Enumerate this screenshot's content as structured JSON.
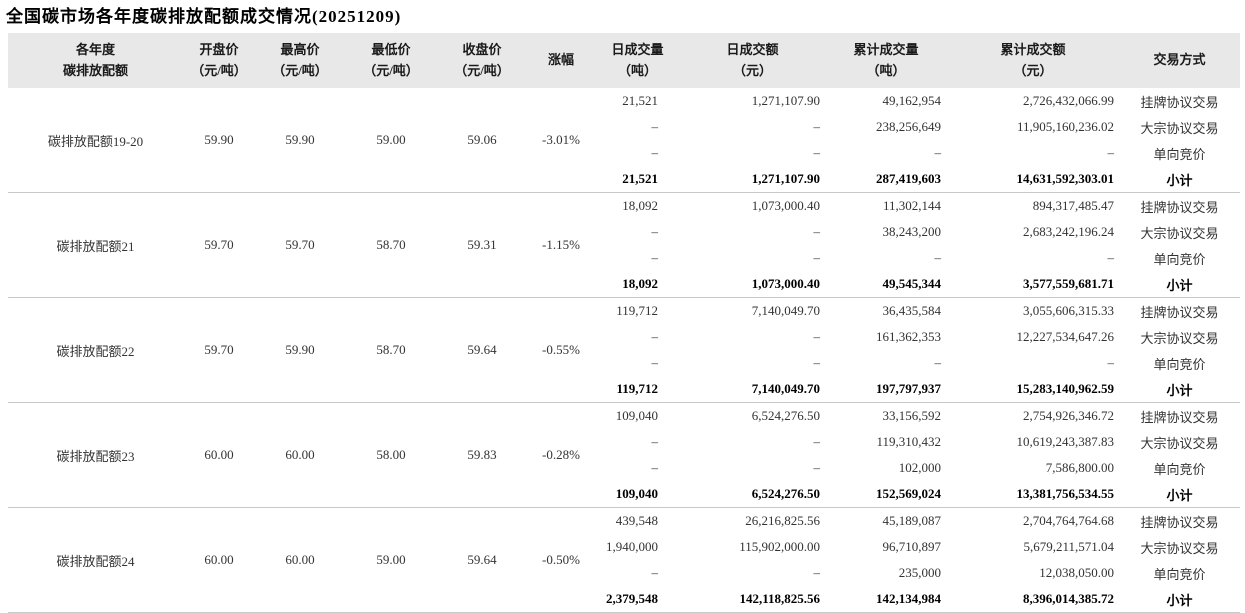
{
  "colors": {
    "header_bg": "#e8e8e8",
    "row_separator": "#c9c9c9",
    "text": "#333333",
    "subtotal_text": "#000000"
  },
  "chart_data": {
    "type": "table",
    "title": "全国碳市场各年度碳排放配额成交情况(20251209)",
    "columns": [
      {
        "line1": "各年度",
        "line2": "碳排放配额"
      },
      {
        "line1": "开盘价",
        "line2": "（元/吨）"
      },
      {
        "line1": "最高价",
        "line2": "（元/吨）"
      },
      {
        "line1": "最低价",
        "line2": "（元/吨）"
      },
      {
        "line1": "收盘价",
        "line2": "（元/吨）"
      },
      {
        "line1": "涨幅",
        "line2": ""
      },
      {
        "line1": "日成交量",
        "line2": "（吨）"
      },
      {
        "line1": "日成交额",
        "line2": "（元）"
      },
      {
        "line1": "累计成交量",
        "line2": "（吨）"
      },
      {
        "line1": "累计成交额",
        "line2": "（元）"
      },
      {
        "line1": "交易方式",
        "line2": ""
      }
    ],
    "groups": [
      {
        "name": "碳排放配额19-20",
        "open": "59.90",
        "high": "59.90",
        "low": "59.00",
        "close": "59.06",
        "change": "-3.01%",
        "rows": [
          {
            "daily_volume": "21,521",
            "daily_amount": "1,271,107.90",
            "cum_volume": "49,162,954",
            "cum_amount": "2,726,432,066.99",
            "method": "挂牌协议交易",
            "is_subtotal": false
          },
          {
            "daily_volume": "–",
            "daily_amount": "–",
            "cum_volume": "238,256,649",
            "cum_amount": "11,905,160,236.02",
            "method": "大宗协议交易",
            "is_subtotal": false
          },
          {
            "daily_volume": "–",
            "daily_amount": "–",
            "cum_volume": "–",
            "cum_amount": "–",
            "method": "单向竞价",
            "is_subtotal": false
          },
          {
            "daily_volume": "21,521",
            "daily_amount": "1,271,107.90",
            "cum_volume": "287,419,603",
            "cum_amount": "14,631,592,303.01",
            "method": "小计",
            "is_subtotal": true
          }
        ]
      },
      {
        "name": "碳排放配额21",
        "open": "59.70",
        "high": "59.70",
        "low": "58.70",
        "close": "59.31",
        "change": "-1.15%",
        "rows": [
          {
            "daily_volume": "18,092",
            "daily_amount": "1,073,000.40",
            "cum_volume": "11,302,144",
            "cum_amount": "894,317,485.47",
            "method": "挂牌协议交易",
            "is_subtotal": false
          },
          {
            "daily_volume": "–",
            "daily_amount": "–",
            "cum_volume": "38,243,200",
            "cum_amount": "2,683,242,196.24",
            "method": "大宗协议交易",
            "is_subtotal": false
          },
          {
            "daily_volume": "–",
            "daily_amount": "–",
            "cum_volume": "–",
            "cum_amount": "–",
            "method": "单向竞价",
            "is_subtotal": false
          },
          {
            "daily_volume": "18,092",
            "daily_amount": "1,073,000.40",
            "cum_volume": "49,545,344",
            "cum_amount": "3,577,559,681.71",
            "method": "小计",
            "is_subtotal": true
          }
        ]
      },
      {
        "name": "碳排放配额22",
        "open": "59.70",
        "high": "59.90",
        "low": "58.70",
        "close": "59.64",
        "change": "-0.55%",
        "rows": [
          {
            "daily_volume": "119,712",
            "daily_amount": "7,140,049.70",
            "cum_volume": "36,435,584",
            "cum_amount": "3,055,606,315.33",
            "method": "挂牌协议交易",
            "is_subtotal": false
          },
          {
            "daily_volume": "–",
            "daily_amount": "–",
            "cum_volume": "161,362,353",
            "cum_amount": "12,227,534,647.26",
            "method": "大宗协议交易",
            "is_subtotal": false
          },
          {
            "daily_volume": "–",
            "daily_amount": "–",
            "cum_volume": "–",
            "cum_amount": "–",
            "method": "单向竞价",
            "is_subtotal": false
          },
          {
            "daily_volume": "119,712",
            "daily_amount": "7,140,049.70",
            "cum_volume": "197,797,937",
            "cum_amount": "15,283,140,962.59",
            "method": "小计",
            "is_subtotal": true
          }
        ]
      },
      {
        "name": "碳排放配额23",
        "open": "60.00",
        "high": "60.00",
        "low": "58.00",
        "close": "59.83",
        "change": "-0.28%",
        "rows": [
          {
            "daily_volume": "109,040",
            "daily_amount": "6,524,276.50",
            "cum_volume": "33,156,592",
            "cum_amount": "2,754,926,346.72",
            "method": "挂牌协议交易",
            "is_subtotal": false
          },
          {
            "daily_volume": "–",
            "daily_amount": "–",
            "cum_volume": "119,310,432",
            "cum_amount": "10,619,243,387.83",
            "method": "大宗协议交易",
            "is_subtotal": false
          },
          {
            "daily_volume": "–",
            "daily_amount": "–",
            "cum_volume": "102,000",
            "cum_amount": "7,586,800.00",
            "method": "单向竞价",
            "is_subtotal": false
          },
          {
            "daily_volume": "109,040",
            "daily_amount": "6,524,276.50",
            "cum_volume": "152,569,024",
            "cum_amount": "13,381,756,534.55",
            "method": "小计",
            "is_subtotal": true
          }
        ]
      },
      {
        "name": "碳排放配额24",
        "open": "60.00",
        "high": "60.00",
        "low": "59.00",
        "close": "59.64",
        "change": "-0.50%",
        "rows": [
          {
            "daily_volume": "439,548",
            "daily_amount": "26,216,825.56",
            "cum_volume": "45,189,087",
            "cum_amount": "2,704,764,764.68",
            "method": "挂牌协议交易",
            "is_subtotal": false
          },
          {
            "daily_volume": "1,940,000",
            "daily_amount": "115,902,000.00",
            "cum_volume": "96,710,897",
            "cum_amount": "5,679,211,571.04",
            "method": "大宗协议交易",
            "is_subtotal": false
          },
          {
            "daily_volume": "–",
            "daily_amount": "–",
            "cum_volume": "235,000",
            "cum_amount": "12,038,050.00",
            "method": "单向竞价",
            "is_subtotal": false
          },
          {
            "daily_volume": "2,379,548",
            "daily_amount": "142,118,825.56",
            "cum_volume": "142,134,984",
            "cum_amount": "8,396,014,385.72",
            "method": "小计",
            "is_subtotal": true
          }
        ]
      }
    ]
  }
}
